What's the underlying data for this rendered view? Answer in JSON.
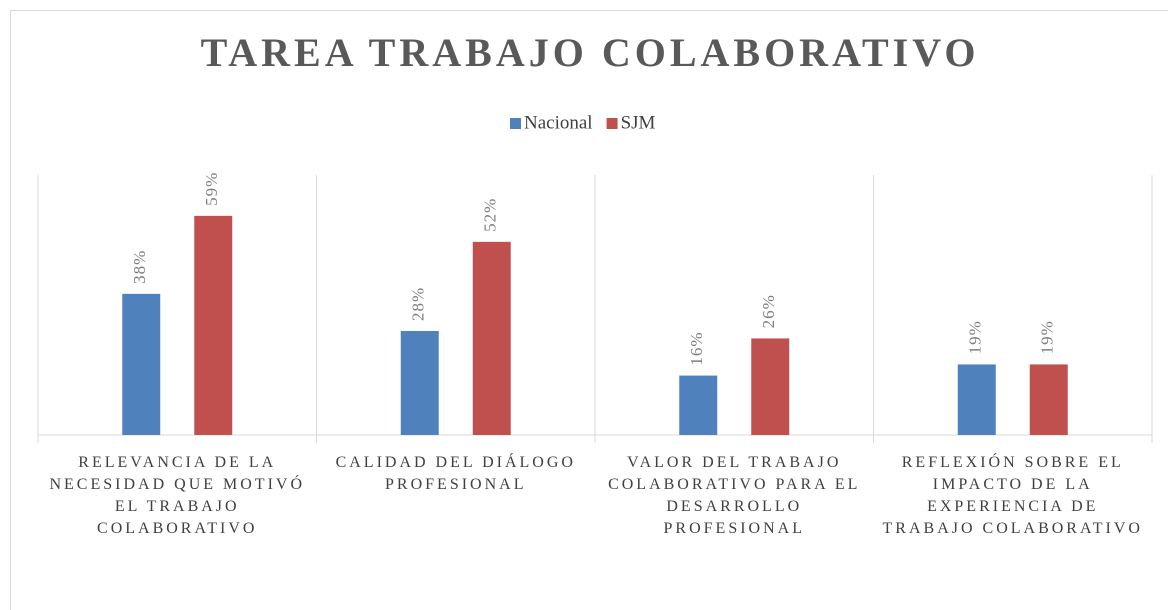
{
  "chart_data": {
    "type": "bar",
    "title": "TAREA TRABAJO COLABORATIVO",
    "categories": [
      "RELEVANCIA DE LA NECESIDAD QUE MOTIVÓ EL TRABAJO COLABORATIVO",
      "CALIDAD DEL DIÁLOGO PROFESIONAL",
      "VALOR DEL TRABAJO COLABORATIVO PARA EL DESARROLLO PROFESIONAL",
      "REFLEXIÓN SOBRE EL IMPACTO DE LA EXPERIENCIA DE TRABAJO COLABORATIVO"
    ],
    "series": [
      {
        "name": "Nacional",
        "color": "#4f81bd",
        "values": [
          38,
          28,
          16,
          19
        ],
        "value_labels": [
          "38%",
          "28%",
          "16%",
          "19%"
        ]
      },
      {
        "name": "SJM",
        "color": "#c0504d",
        "values": [
          59,
          52,
          26,
          19
        ],
        "value_labels": [
          "59%",
          "52%",
          "26%",
          "19%"
        ]
      }
    ],
    "ylim": [
      0,
      70
    ],
    "legend": "top"
  }
}
